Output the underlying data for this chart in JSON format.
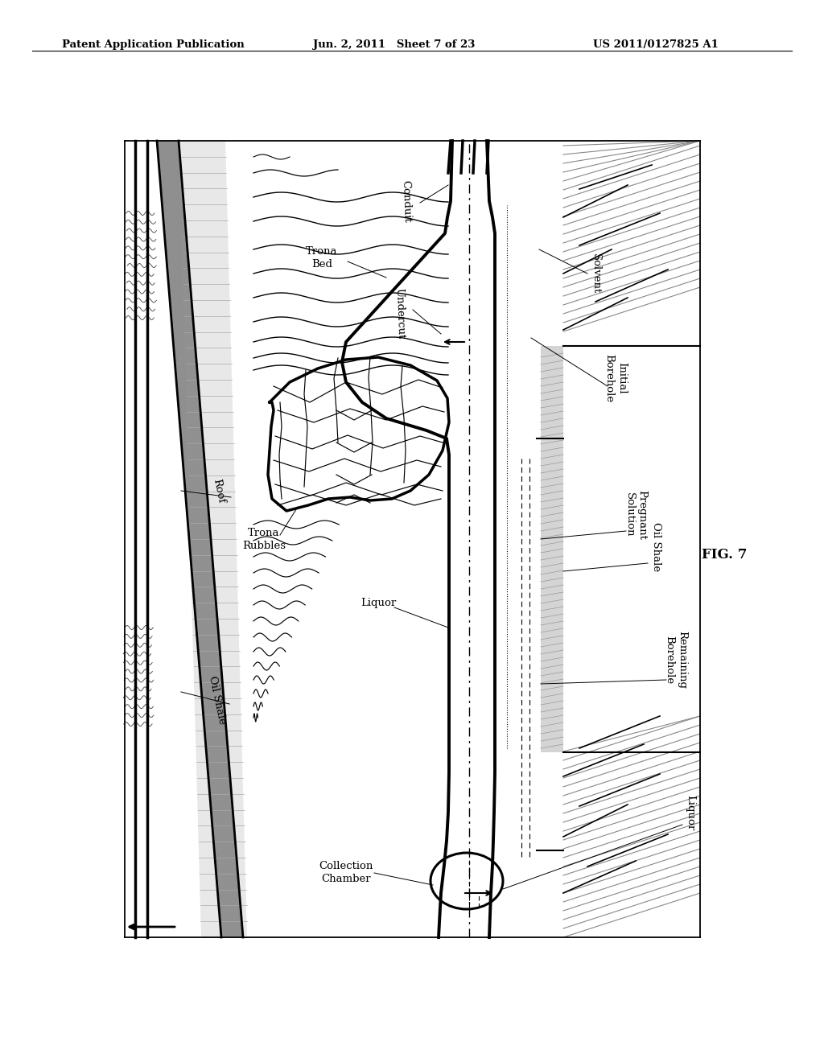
{
  "bg_color": "#ffffff",
  "header_left": "Patent Application Publication",
  "header_mid": "Jun. 2, 2011   Sheet 7 of 23",
  "header_right": "US 2011/0127825 A1",
  "fig_label": "FIG. 7",
  "lc": "#000000"
}
